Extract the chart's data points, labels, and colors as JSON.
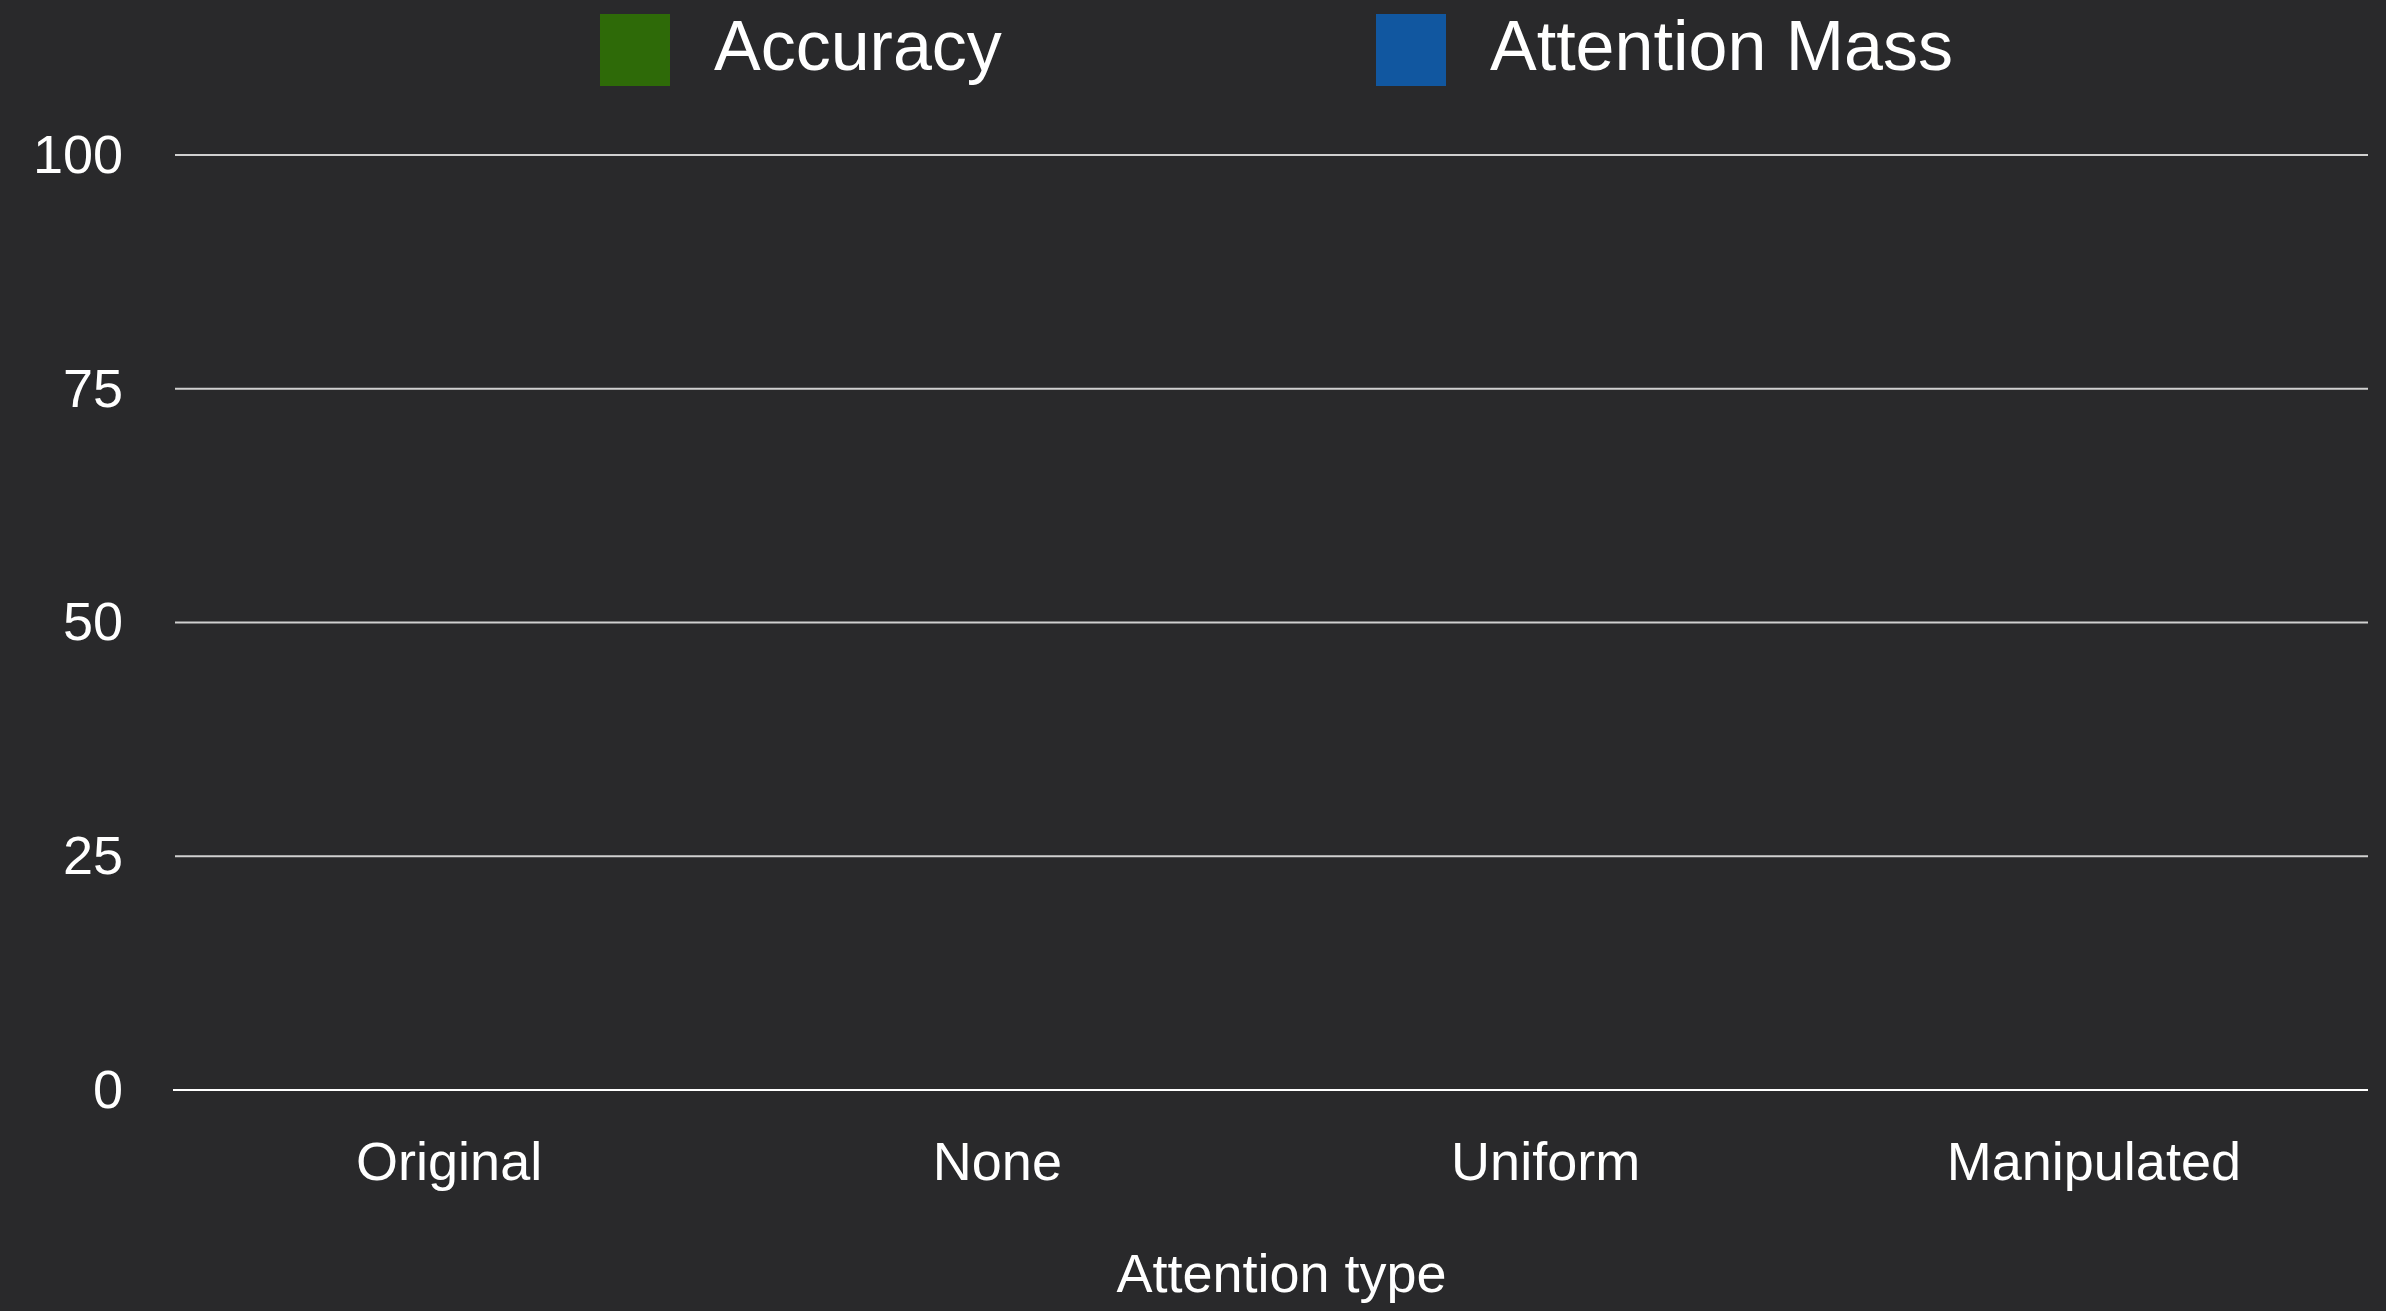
{
  "chart_data": {
    "type": "bar",
    "xlabel": "Attention type",
    "categories": [
      "Original",
      "None",
      "Uniform",
      "Manipulated"
    ],
    "series": [
      {
        "name": "Accuracy",
        "color": "#2e6a08",
        "values": [
          null,
          null,
          null,
          null
        ]
      },
      {
        "name": "Attention Mass",
        "color": "#1157a0",
        "values": [
          null,
          null,
          null,
          null
        ]
      }
    ],
    "ylim": [
      0,
      100
    ],
    "yticks": [
      0,
      25,
      50,
      75,
      100
    ],
    "grid": "y",
    "legend": "top"
  }
}
